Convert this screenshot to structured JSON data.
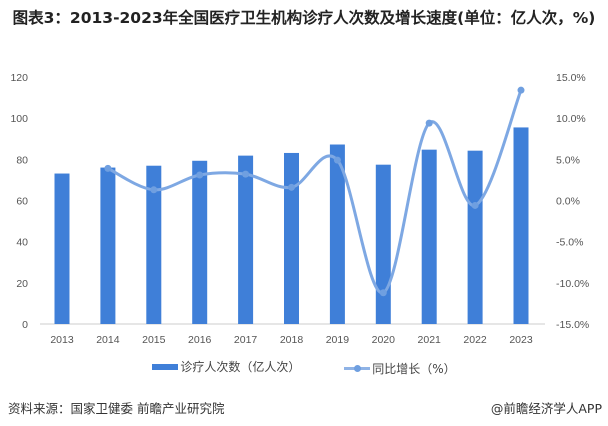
{
  "title": "图表3：2013-2023年全国医疗卫生机构诊疗人次数及增长速度(单位：亿人次，%)",
  "source": "资料来源：国家卫健委 前瞻产业研究院",
  "credit": "@前瞻经济学人APP",
  "watermark": "前瞻产业研究院",
  "chart_data": {
    "type": "bar+line",
    "categories": [
      "2013",
      "2014",
      "2015",
      "2016",
      "2017",
      "2018",
      "2019",
      "2020",
      "2021",
      "2022",
      "2023"
    ],
    "series": [
      {
        "name": "诊疗人次数（亿人次）",
        "type": "bar",
        "axis": "left",
        "color": "#3f7fd8",
        "values": [
          73.1,
          76.0,
          76.9,
          79.3,
          81.8,
          83.1,
          87.2,
          77.4,
          84.7,
          84.2,
          95.5
        ]
      },
      {
        "name": "同比增长（%）",
        "type": "line",
        "axis": "right",
        "color": "#7ea8e3",
        "values": [
          null,
          3.9,
          1.3,
          3.1,
          3.2,
          1.6,
          4.9,
          -11.2,
          9.4,
          -0.6,
          13.4
        ]
      }
    ],
    "left_axis": {
      "ylim": [
        0,
        120
      ],
      "ticks": [
        "0",
        "20",
        "40",
        "60",
        "80",
        "100",
        "120"
      ]
    },
    "right_axis": {
      "ylim": [
        -15,
        15
      ],
      "ticks": [
        "-15.0%",
        "-10.0%",
        "-5.0%",
        "0.0%",
        "5.0%",
        "10.0%",
        "15.0%"
      ]
    },
    "grid": false,
    "legend": "bottom"
  }
}
